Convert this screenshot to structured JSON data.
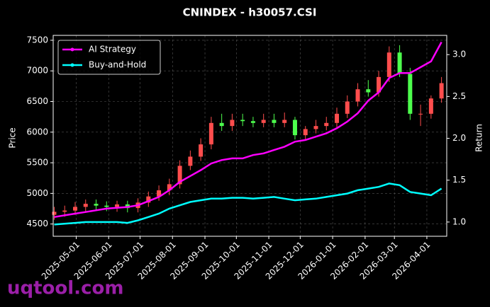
{
  "chart_data": {
    "type": "candlestick",
    "title": "CNINDEX - h30057.CSI",
    "ylabel": "Price",
    "y2label": "Return",
    "watermark": "uqtool.com",
    "x": [
      "2025-04-10",
      "2025-04-20",
      "2025-04-30",
      "2025-05-10",
      "2025-05-20",
      "2025-05-30",
      "2025-06-09",
      "2025-06-19",
      "2025-06-29",
      "2025-07-09",
      "2025-07-19",
      "2025-07-29",
      "2025-08-08",
      "2025-08-18",
      "2025-08-28",
      "2025-09-07",
      "2025-09-17",
      "2025-09-27",
      "2025-10-07",
      "2025-10-17",
      "2025-10-27",
      "2025-11-06",
      "2025-11-16",
      "2025-11-26",
      "2025-12-06",
      "2025-12-16",
      "2025-12-26",
      "2026-01-05",
      "2026-01-15",
      "2026-01-25",
      "2026-02-04",
      "2026-02-14",
      "2026-02-24",
      "2026-03-06",
      "2026-03-16",
      "2026-03-26",
      "2026-04-05",
      "2026-04-15"
    ],
    "open": [
      4650,
      4700,
      4720,
      4780,
      4830,
      4800,
      4780,
      4820,
      4760,
      4850,
      4950,
      5050,
      5150,
      5450,
      5600,
      5800,
      6150,
      6100,
      6200,
      6180,
      6150,
      6200,
      6150,
      6200,
      5950,
      6050,
      6100,
      6150,
      6300,
      6500,
      6700,
      6650,
      6900,
      7300,
      6950,
      6300,
      6300,
      6550
    ],
    "close": [
      4700,
      4720,
      4780,
      4830,
      4800,
      4780,
      4820,
      4760,
      4850,
      4950,
      5050,
      5150,
      5450,
      5600,
      5800,
      6150,
      6100,
      6200,
      6180,
      6150,
      6200,
      6150,
      6200,
      5950,
      6050,
      6100,
      6150,
      6300,
      6500,
      6700,
      6650,
      6900,
      7300,
      6950,
      6300,
      6300,
      6550,
      6800
    ],
    "high": [
      4780,
      4800,
      4860,
      4900,
      4900,
      4870,
      4880,
      4880,
      4920,
      5030,
      5130,
      5240,
      5540,
      5700,
      5900,
      6250,
      6300,
      6300,
      6300,
      6250,
      6300,
      6300,
      6320,
      6250,
      6100,
      6200,
      6250,
      6400,
      6600,
      6800,
      6850,
      7000,
      7400,
      7420,
      7050,
      6450,
      6600,
      6900
    ],
    "low": [
      4570,
      4620,
      4650,
      4700,
      4730,
      4710,
      4700,
      4690,
      4690,
      4780,
      4880,
      4970,
      5080,
      5380,
      5530,
      5720,
      6020,
      6020,
      6100,
      6080,
      6080,
      6080,
      6080,
      5880,
      5880,
      5980,
      6030,
      6080,
      6230,
      6420,
      6580,
      6580,
      6820,
      6900,
      6200,
      6100,
      6220,
      6480
    ],
    "up_color": "#ff4d4d",
    "down_color": "#4dff4d",
    "series": [
      {
        "name": "AI Strategy",
        "color": "#ff00ff",
        "axis": "y2",
        "values": [
          1.06,
          1.08,
          1.1,
          1.12,
          1.14,
          1.16,
          1.17,
          1.18,
          1.2,
          1.25,
          1.3,
          1.38,
          1.48,
          1.55,
          1.62,
          1.7,
          1.74,
          1.76,
          1.76,
          1.8,
          1.82,
          1.86,
          1.9,
          1.96,
          1.98,
          2.02,
          2.06,
          2.12,
          2.2,
          2.3,
          2.45,
          2.55,
          2.72,
          2.78,
          2.78,
          2.85,
          2.92,
          3.15
        ]
      },
      {
        "name": "Buy-and-Hold",
        "color": "#00ffff",
        "axis": "y2",
        "values": [
          0.97,
          0.98,
          0.99,
          1.0,
          1.0,
          1.0,
          1.0,
          0.99,
          1.02,
          1.06,
          1.1,
          1.16,
          1.2,
          1.24,
          1.26,
          1.28,
          1.28,
          1.29,
          1.29,
          1.28,
          1.29,
          1.3,
          1.28,
          1.26,
          1.27,
          1.28,
          1.3,
          1.32,
          1.34,
          1.38,
          1.4,
          1.42,
          1.46,
          1.44,
          1.36,
          1.34,
          1.32,
          1.4
        ]
      }
    ],
    "xlim": [
      "2025-04-09",
      "2026-04-20"
    ],
    "xticks": [
      "2025-05-01",
      "2025-06-01",
      "2025-07-01",
      "2025-08-01",
      "2025-09-01",
      "2025-10-01",
      "2025-11-01",
      "2025-12-01",
      "2026-01-01",
      "2026-02-01",
      "2026-03-01",
      "2026-04-01"
    ],
    "ylim": [
      4300,
      7580
    ],
    "yticks": [
      4500,
      5000,
      5500,
      6000,
      6500,
      7000,
      7500
    ],
    "y2lim": [
      0.83,
      3.23
    ],
    "y2ticks": [
      {
        "value": 1,
        "label": "1.0"
      },
      1.5,
      {
        "value": 2,
        "label": "2.0"
      },
      2.5,
      {
        "value": 3,
        "label": "3.0"
      }
    ],
    "grid": true,
    "legend": "upper left"
  }
}
